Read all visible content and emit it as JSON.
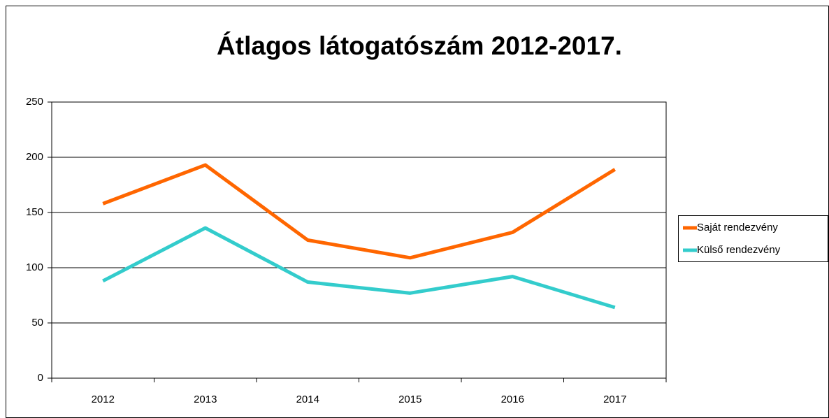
{
  "chart_data": {
    "type": "line",
    "title": "Átlagos látogatószám 2012-2017.",
    "categories": [
      "2012",
      "2013",
      "2014",
      "2015",
      "2016",
      "2017"
    ],
    "series": [
      {
        "name": "Saját rendezvény",
        "color": "#ff6600",
        "values": [
          158,
          193,
          125,
          109,
          132,
          189
        ]
      },
      {
        "name": "Külső rendezvény",
        "color": "#33cccc",
        "values": [
          88,
          136,
          87,
          77,
          92,
          64
        ]
      }
    ],
    "ylim": [
      0,
      250
    ],
    "yticks": [
      0,
      50,
      100,
      150,
      200,
      250
    ],
    "grid": true,
    "legend": "right"
  }
}
